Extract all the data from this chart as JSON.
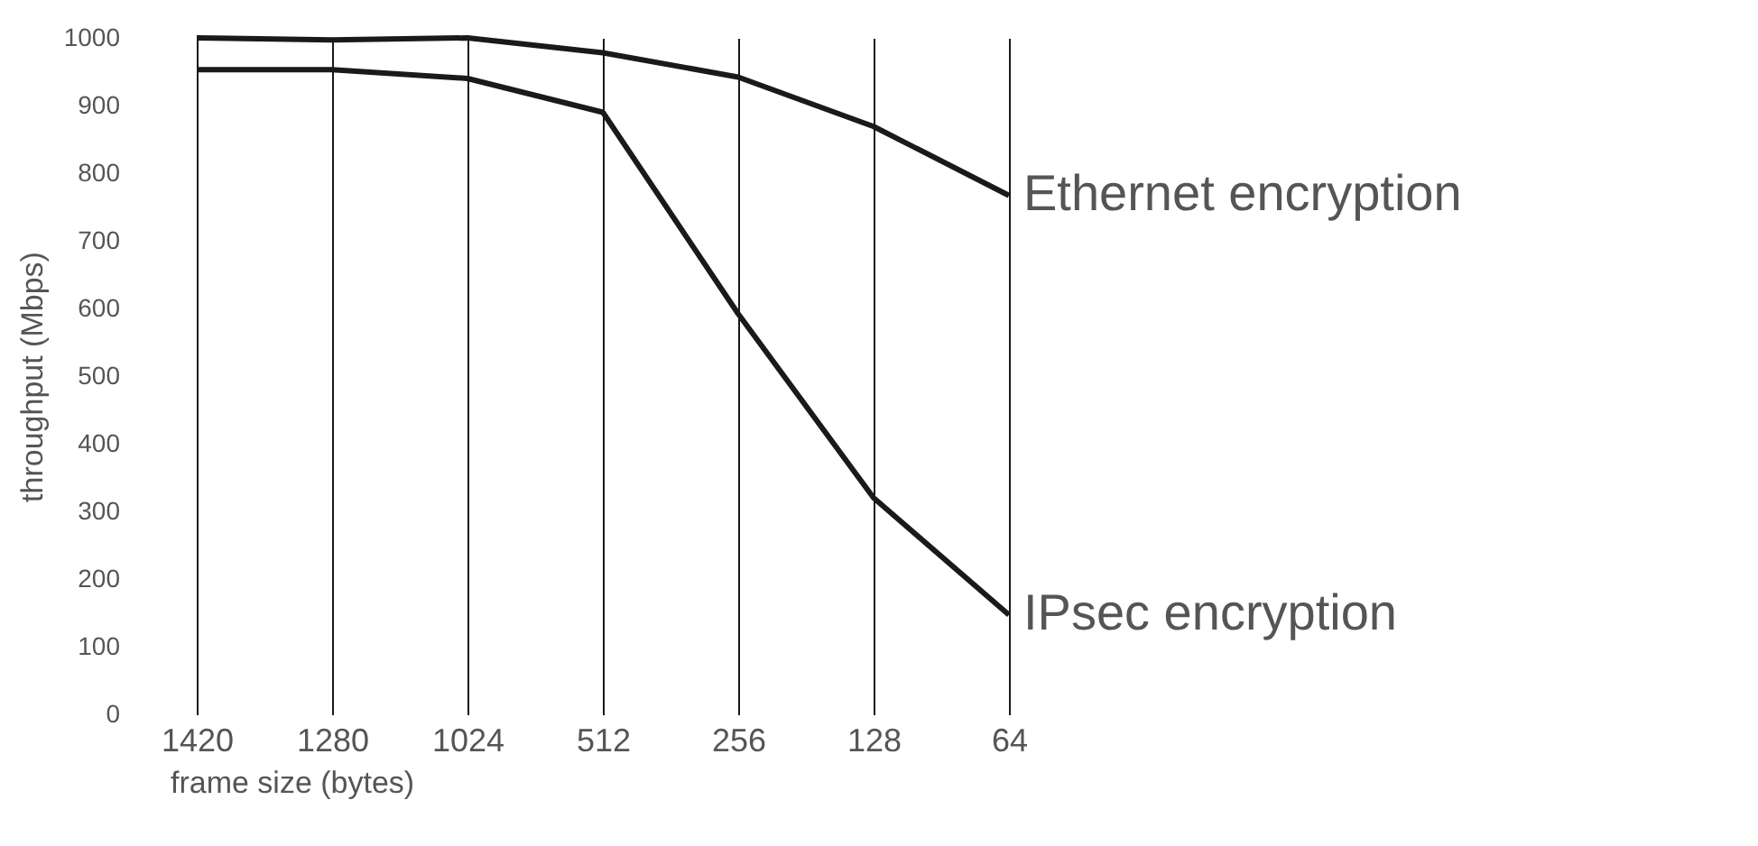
{
  "chart_data": {
    "type": "line",
    "xlabel": "frame size (bytes)",
    "ylabel": "throughput (Mbps)",
    "categories": [
      "1420",
      "1280",
      "1024",
      "512",
      "256",
      "128",
      "64"
    ],
    "series": [
      {
        "name": "Ethernet encryption",
        "color": "#1a1a1a",
        "values": [
          1000,
          997,
          1000,
          978,
          942,
          869,
          767
        ]
      },
      {
        "name": "IPsec encryption",
        "color": "#1a1a1a",
        "values": [
          953,
          953,
          940,
          890,
          592,
          320,
          147
        ]
      }
    ],
    "ylim": [
      0,
      1000
    ],
    "yticks": [
      0,
      100,
      200,
      300,
      400,
      500,
      600,
      700,
      800,
      900,
      1000
    ],
    "grid": "x",
    "legend": false
  }
}
